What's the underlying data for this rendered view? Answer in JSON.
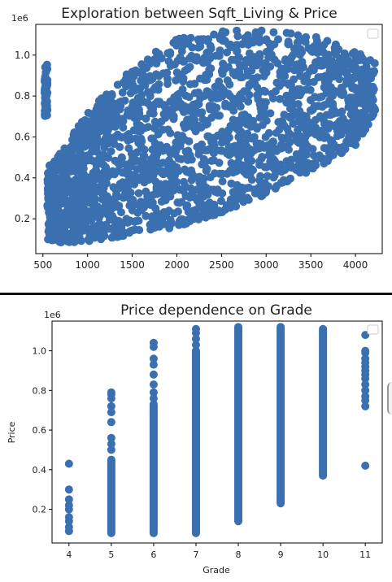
{
  "colors": {
    "marker": "#3a70b0",
    "axis": "#000000",
    "text": "#222222"
  },
  "chart_data": [
    {
      "type": "scatter",
      "title": "Exploration between Sqft_Living & Price",
      "xlabel": "",
      "ylabel": "",
      "y_offset_label": "1e6",
      "xlim": [
        420,
        4300
      ],
      "ylim": [
        30000,
        1150000
      ],
      "x_ticks": [
        "500",
        "1000",
        "1500",
        "2000",
        "2500",
        "3000",
        "3500",
        "4000"
      ],
      "x_tick_values": [
        500,
        1000,
        1500,
        2000,
        2500,
        3000,
        3500,
        4000
      ],
      "y_ticks": [
        "0.2",
        "0.4",
        "0.6",
        "0.8",
        "1.0"
      ],
      "y_tick_values": [
        200000,
        400000,
        600000,
        800000,
        1000000
      ],
      "legend": "top-right (empty)",
      "grid": false,
      "point_density_bands": [
        {
          "x": 550,
          "low": 100000,
          "high": 450000
        },
        {
          "x": 750,
          "low": 80000,
          "high": 560000
        },
        {
          "x": 1000,
          "low": 90000,
          "high": 720000
        },
        {
          "x": 1500,
          "low": 120000,
          "high": 950000
        },
        {
          "x": 2000,
          "low": 160000,
          "high": 1080000
        },
        {
          "x": 2500,
          "low": 230000,
          "high": 1120000
        },
        {
          "x": 3000,
          "low": 320000,
          "high": 1120000
        },
        {
          "x": 3500,
          "low": 430000,
          "high": 1100000
        },
        {
          "x": 4000,
          "low": 560000,
          "high": 1020000
        },
        {
          "x": 4200,
          "low": 700000,
          "high": 980000
        }
      ]
    },
    {
      "type": "scatter",
      "title": "Price dependence on Grade",
      "xlabel": "Grade",
      "ylabel": "Price",
      "y_offset_label": "1e6",
      "xlim": [
        3.6,
        11.4
      ],
      "ylim": [
        30000,
        1150000
      ],
      "x_ticks": [
        "4",
        "5",
        "6",
        "7",
        "8",
        "9",
        "10",
        "11"
      ],
      "x_tick_values": [
        4,
        5,
        6,
        7,
        8,
        9,
        10,
        11
      ],
      "y_ticks": [
        "0.2",
        "0.4",
        "0.6",
        "0.8",
        "1.0"
      ],
      "y_tick_values": [
        200000,
        400000,
        600000,
        800000,
        1000000
      ],
      "legend": "top-right (empty)",
      "grid": false,
      "columns": [
        {
          "grade": 4,
          "continuous": [],
          "points": [
            90000,
            110000,
            140000,
            160000,
            200000,
            220000,
            250000,
            300000,
            430000
          ]
        },
        {
          "grade": 5,
          "continuous": [
            80000,
            450000
          ],
          "points": [
            500000,
            530000,
            560000,
            640000,
            690000,
            720000,
            760000,
            780000,
            790000
          ]
        },
        {
          "grade": 6,
          "continuous": [
            80000,
            730000
          ],
          "points": [
            760000,
            790000,
            830000,
            880000,
            930000,
            960000,
            1020000,
            1040000
          ]
        },
        {
          "grade": 7,
          "continuous": [
            80000,
            1000000
          ],
          "points": [
            1030000,
            1060000,
            1090000,
            1110000
          ]
        },
        {
          "grade": 8,
          "continuous": [
            140000,
            1120000
          ],
          "points": []
        },
        {
          "grade": 9,
          "continuous": [
            230000,
            1120000
          ],
          "points": []
        },
        {
          "grade": 10,
          "continuous": [
            370000,
            1110000
          ],
          "points": []
        },
        {
          "grade": 11,
          "continuous": [],
          "points": [
            420000,
            720000,
            750000,
            770000,
            800000,
            830000,
            860000,
            880000,
            900000,
            920000,
            940000,
            960000,
            990000,
            1000000,
            1080000
          ]
        }
      ]
    }
  ]
}
